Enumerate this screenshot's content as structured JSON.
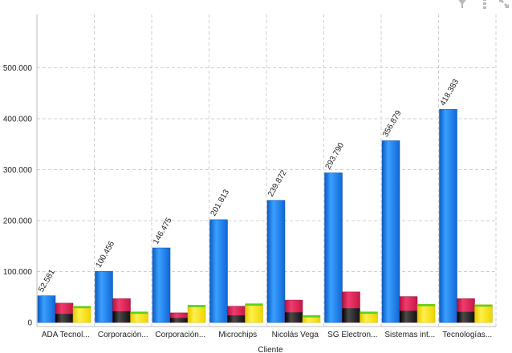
{
  "toolbar": {
    "icons": [
      "filter-icon",
      "menu-icon",
      "expand-icon"
    ],
    "color": "#b8b8b8"
  },
  "chart_data": {
    "type": "bar",
    "xlabel": "Cliente",
    "ylabel": "",
    "ylim": [
      0,
      600000
    ],
    "grid": true,
    "yticks": [
      {
        "value": 0,
        "label": "0"
      },
      {
        "value": 100000,
        "label": "100.000"
      },
      {
        "value": 200000,
        "label": "200.000"
      },
      {
        "value": 300000,
        "label": "300.000"
      },
      {
        "value": 400000,
        "label": "400.000"
      },
      {
        "value": 500000,
        "label": "500.000"
      }
    ],
    "categories": [
      "ADA Tecnol...",
      "Corporación...",
      "Corporación...",
      "Microchips",
      "Nicolás Vega",
      "SG Electron...",
      "Sistemas int...",
      "Tecnologías..."
    ],
    "series": [
      {
        "values": [
          52581,
          100456,
          146475,
          201813,
          239872,
          293790,
          356879,
          418383
        ],
        "labels": [
          "52.581",
          "100.456",
          "146.475",
          "201.813",
          "239.872",
          "293.790",
          "356.879",
          "418.383"
        ],
        "color": "#1e88f0"
      },
      {
        "values": [
          38000,
          47000,
          19000,
          32000,
          44000,
          60000,
          51000,
          47000
        ],
        "color": "#e8245a"
      },
      {
        "values": [
          17000,
          22000,
          9000,
          14000,
          20000,
          28000,
          23000,
          21000
        ],
        "color": "#1c1c1c"
      },
      {
        "values": [
          32000,
          21000,
          34000,
          37000,
          14000,
          21000,
          36000,
          35000
        ],
        "color": "#f7e21e"
      }
    ]
  }
}
